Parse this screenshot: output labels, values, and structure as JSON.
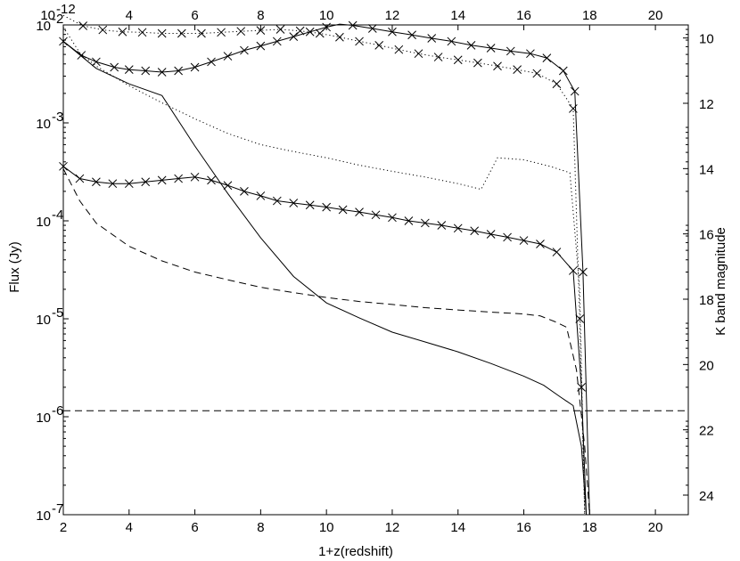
{
  "chart_data": {
    "type": "line",
    "title": "",
    "xlabel": "1+z(redshift)",
    "ylabel": "Flux (Jy)",
    "y2label": "K band magnitude",
    "xlim": [
      2,
      21
    ],
    "ylim": [
      1e-07,
      0.01
    ],
    "yscale": "log",
    "y2lim": [
      24.6,
      9.6
    ],
    "grid": false,
    "legend": "none",
    "x_ticks": [
      2,
      4,
      6,
      8,
      10,
      12,
      14,
      16,
      18,
      20
    ],
    "y_ticks": [
      {
        "value": 1e-07,
        "exp": "-7"
      },
      {
        "value": 1e-06,
        "exp": "-6"
      },
      {
        "value": 1e-05,
        "exp": "-5"
      },
      {
        "value": 0.0001,
        "exp": "-4"
      },
      {
        "value": 0.001,
        "exp": "-3"
      },
      {
        "value": 0.01,
        "exp": "-2"
      }
    ],
    "y_tick_base": "10",
    "top_corner_label": "10",
    "top_corner_exp": "-12",
    "y2_ticks": [
      10,
      12,
      14,
      16,
      18,
      20,
      22,
      24
    ],
    "series": [
      {
        "style": "solid",
        "markers": false,
        "x": [
          2,
          3,
          4,
          5,
          6,
          7,
          8,
          9,
          10,
          11,
          12,
          13,
          14,
          15,
          16,
          16.6,
          17.1,
          17.5,
          17.75,
          17.9
        ],
        "y": [
          0.0068,
          0.0036,
          0.0025,
          0.0019,
          0.00058,
          0.00019,
          6.7e-05,
          2.7e-05,
          1.45e-05,
          1.02e-05,
          7.3e-06,
          5.8e-06,
          4.6e-06,
          3.5e-06,
          2.6e-06,
          2.1e-06,
          1.6e-06,
          1.3e-06,
          5e-07,
          1e-07
        ]
      },
      {
        "style": "solid",
        "markers": true,
        "x": [
          2,
          2.55,
          3,
          3.55,
          4,
          4.5,
          5,
          5.5,
          6,
          6.5,
          7,
          7.5,
          8,
          8.5,
          9,
          9.5,
          10,
          10.4,
          10.8,
          11.4,
          12,
          12.6,
          13.2,
          13.8,
          14.4,
          15,
          15.6,
          16.2,
          16.7,
          17.2,
          17.55,
          17.8,
          18.0
        ],
        "y": [
          0.0068,
          0.0049,
          0.0042,
          0.0037,
          0.0035,
          0.0034,
          0.0033,
          0.0034,
          0.0037,
          0.0042,
          0.0048,
          0.0055,
          0.0061,
          0.0068,
          0.0076,
          0.0085,
          0.0095,
          0.0102,
          0.0099,
          0.0092,
          0.0085,
          0.0079,
          0.0073,
          0.0068,
          0.0062,
          0.0058,
          0.0054,
          0.0051,
          0.0046,
          0.0034,
          0.0021,
          3e-05,
          1e-07
        ]
      },
      {
        "style": "dotted",
        "markers": true,
        "x": [
          2,
          2.6,
          3.2,
          3.8,
          4.4,
          5,
          5.6,
          6.2,
          6.8,
          7.4,
          8,
          8.6,
          9.2,
          9.8,
          10.4,
          11,
          11.6,
          12.2,
          12.8,
          13.4,
          14,
          14.6,
          15.2,
          15.8,
          16.4,
          17,
          17.5,
          17.7,
          17.85
        ],
        "y": [
          0.0125,
          0.0098,
          0.0089,
          0.0085,
          0.0084,
          0.0082,
          0.0082,
          0.0082,
          0.0084,
          0.0086,
          0.0088,
          0.009,
          0.0087,
          0.0082,
          0.0075,
          0.0068,
          0.0062,
          0.0056,
          0.0051,
          0.0047,
          0.0044,
          0.0041,
          0.0038,
          0.0035,
          0.0032,
          0.0025,
          0.0014,
          1e-05,
          1e-07
        ]
      },
      {
        "style": "dotted",
        "markers": false,
        "x": [
          2,
          2.5,
          3,
          4,
          5,
          6,
          7,
          8,
          9,
          10,
          11,
          12,
          13,
          14,
          14.7,
          15.2,
          16,
          16.8,
          17.4,
          17.7,
          17.85
        ],
        "y": [
          0.0095,
          0.0052,
          0.0038,
          0.0024,
          0.0016,
          0.0011,
          0.00078,
          0.0006,
          0.00051,
          0.00044,
          0.00037,
          0.00032,
          0.00028,
          0.00024,
          0.00021,
          0.00044,
          0.00042,
          0.00036,
          0.00031,
          2e-05,
          1e-07
        ]
      },
      {
        "style": "solid",
        "markers": true,
        "x": [
          2,
          2.5,
          3,
          3.5,
          4,
          4.5,
          5,
          5.5,
          6,
          6.5,
          7,
          7.5,
          8,
          8.5,
          9,
          9.5,
          10,
          10.5,
          11,
          11.5,
          12,
          12.5,
          13,
          13.5,
          14,
          14.5,
          15,
          15.5,
          16,
          16.5,
          17,
          17.5,
          17.75,
          17.9
        ],
        "y": [
          0.00036,
          0.00027,
          0.00025,
          0.00024,
          0.00024,
          0.00025,
          0.00026,
          0.00027,
          0.00028,
          0.00026,
          0.00023,
          0.0002,
          0.00018,
          0.00016,
          0.000152,
          0.000145,
          0.000138,
          0.00013,
          0.000123,
          0.000115,
          0.000108,
          0.0001,
          9.5e-05,
          9e-05,
          8.4e-05,
          7.9e-05,
          7.3e-05,
          6.8e-05,
          6.3e-05,
          5.8e-05,
          4.8e-05,
          3.1e-05,
          2e-06,
          1e-07
        ]
      },
      {
        "style": "dashed",
        "markers": false,
        "x": [
          2,
          2.5,
          3,
          4,
          5,
          6,
          7,
          8,
          9,
          10,
          11,
          12,
          13,
          14,
          15,
          16,
          16.5,
          17,
          17.3,
          17.6,
          17.85,
          18.0
        ],
        "y": [
          0.00034,
          0.00016,
          9.5e-05,
          5.5e-05,
          3.9e-05,
          3e-05,
          2.5e-05,
          2.1e-05,
          1.85e-05,
          1.65e-05,
          1.5e-05,
          1.4e-05,
          1.3e-05,
          1.23e-05,
          1.17e-05,
          1.12e-05,
          1.07e-05,
          9.2e-06,
          8.2e-06,
          3e-06,
          5e-07,
          1e-07
        ]
      },
      {
        "style": "dashed",
        "markers": false,
        "x": [
          2,
          21
        ],
        "y": [
          1.15e-06,
          1.15e-06
        ]
      }
    ]
  }
}
